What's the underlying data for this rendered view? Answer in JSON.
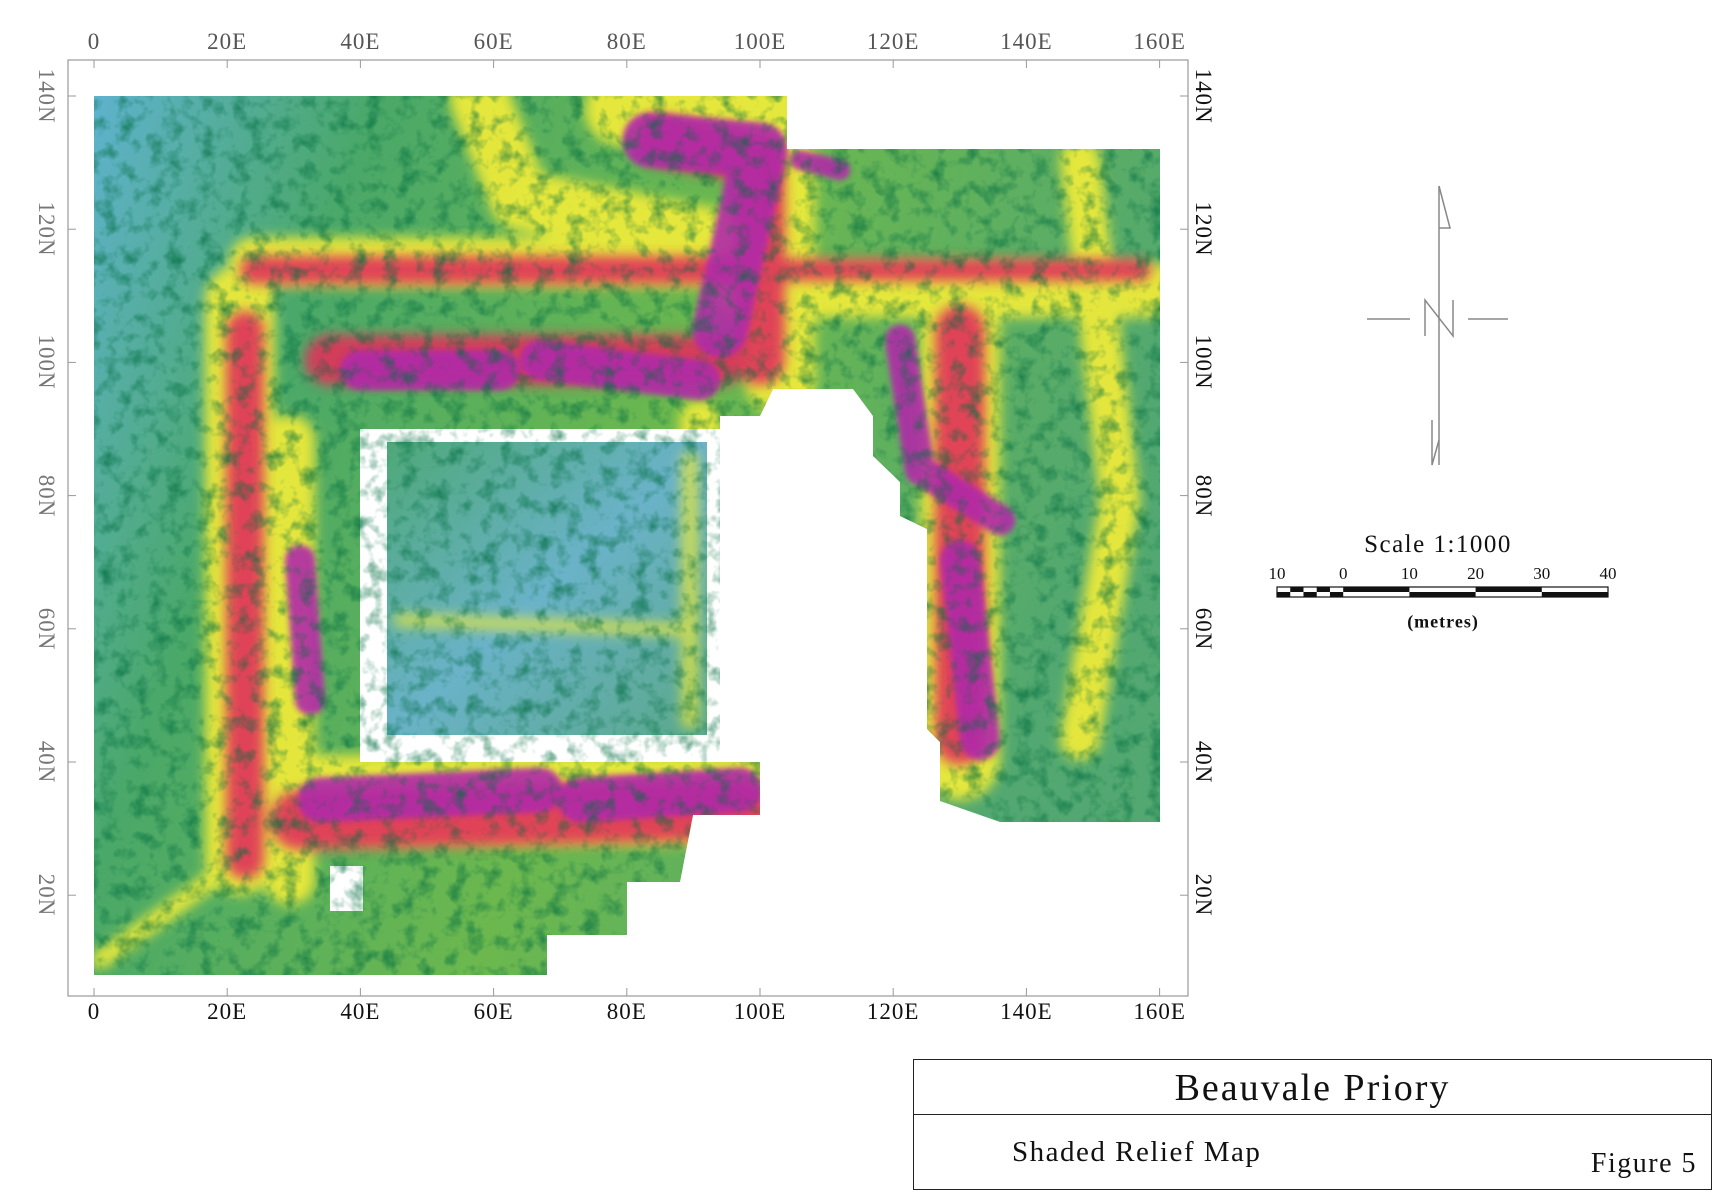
{
  "title": "Beauvale Priory",
  "subtitle": "Shaded Relief Map",
  "figure_label": "Figure 5",
  "map": {
    "type": "shaded relief survey grid",
    "x_ticks": [
      "0",
      "20E",
      "40E",
      "60E",
      "80E",
      "100E",
      "120E",
      "140E",
      "160E"
    ],
    "y_ticks": [
      "140N",
      "120N",
      "100N",
      "80N",
      "60N",
      "40N",
      "20N"
    ],
    "colors": {
      "low": "#5aaccf",
      "mid": "#4aa85a",
      "high_yellow": "#ecea3a",
      "high_red": "#e0305a",
      "peak_magenta": "#b02aa8"
    }
  },
  "north_arrow": {
    "label": "N"
  },
  "scale": {
    "title": "Scale 1:1000",
    "ticks": [
      "10",
      "0",
      "10",
      "20",
      "30",
      "40"
    ],
    "unit": "(metres)"
  }
}
